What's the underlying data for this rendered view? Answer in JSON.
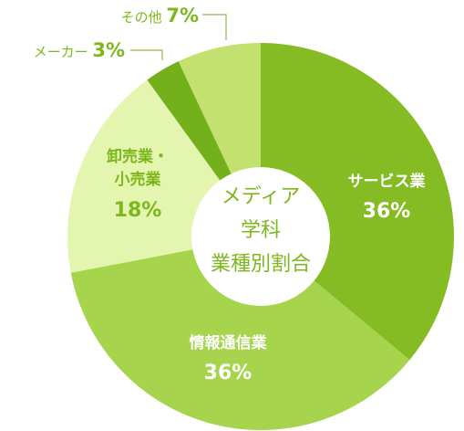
{
  "chart_data": {
    "type": "pie",
    "title": "",
    "center_label": [
      "メディア",
      "学科",
      "業種別割合"
    ],
    "unit": "%",
    "colors": {
      "services": "#85bc24",
      "info": "#a6d44c",
      "wholesale": "#e3f5ae",
      "maker": "#74b01c",
      "other": "#c2e16f",
      "label_dark": "#7db71e",
      "label_white": "#ffffff",
      "leader": "#8fb74a",
      "center": "#ffffff"
    },
    "slices": [
      {
        "key": "services",
        "label": [
          "サービス業"
        ],
        "value": 36
      },
      {
        "key": "info",
        "label": [
          "情報通信業"
        ],
        "value": 36
      },
      {
        "key": "wholesale",
        "label": [
          "卸売業・",
          "小売業"
        ],
        "value": 18
      },
      {
        "key": "maker",
        "label": [
          "メーカー"
        ],
        "value": 3
      },
      {
        "key": "other",
        "label": [
          "その他"
        ],
        "value": 7
      }
    ]
  }
}
